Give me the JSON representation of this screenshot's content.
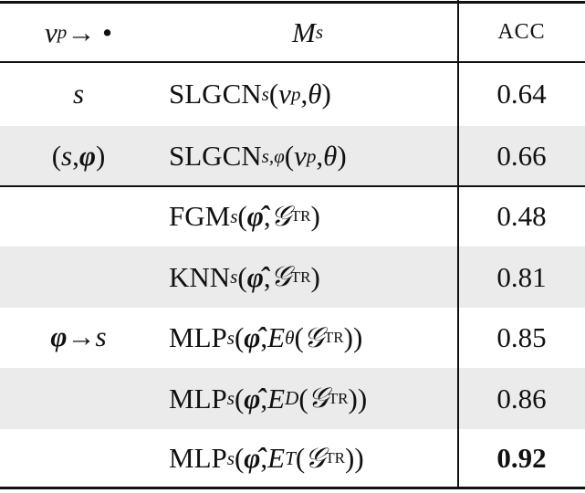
{
  "table": {
    "header": [
      [
        {
          "i": "v"
        },
        {
          "sub": "p"
        },
        " → •"
      ],
      [
        {
          "i": "M"
        },
        {
          "sub": "s"
        }
      ],
      [
        "ACC"
      ]
    ],
    "rows": [
      {
        "setting": [
          {
            "i": "s"
          }
        ],
        "model": [
          "SLGCN",
          {
            "sub": "s"
          },
          "(",
          {
            "i": "v"
          },
          {
            "sub": "p"
          },
          ", ",
          {
            "i": "θ"
          },
          ")"
        ],
        "acc": "0.64"
      },
      {
        "setting": [
          "(",
          {
            "i": "s"
          },
          ", ",
          {
            "bi": "φ"
          },
          ")"
        ],
        "model": [
          "SLGCN",
          {
            "sub": "s,φ"
          },
          "(",
          {
            "i": "v"
          },
          {
            "sub": "p"
          },
          ", ",
          {
            "i": "θ"
          },
          ")"
        ],
        "acc": "0.66"
      },
      {
        "model": [
          "FGM",
          {
            "sub": "s"
          },
          "(",
          {
            "bi": "φ̂"
          },
          ", ",
          {
            "i": "𝒢"
          },
          {
            "sup": "TR"
          },
          ")"
        ],
        "acc": "0.48"
      },
      {
        "model": [
          "KNN",
          {
            "sub": "s"
          },
          "(",
          {
            "bi": "φ̂"
          },
          ", ",
          {
            "i": "𝒢"
          },
          {
            "sup": "TR"
          },
          ")"
        ],
        "acc": "0.81"
      },
      {
        "model": [
          "MLP",
          {
            "sub": "s"
          },
          "(",
          {
            "bi": "φ̂"
          },
          ", ",
          {
            "i": "E"
          },
          {
            "sub": "θ"
          },
          "(",
          {
            "i": "𝒢"
          },
          {
            "sup": "TR"
          },
          "))"
        ],
        "acc": "0.85"
      },
      {
        "model": [
          "MLP",
          {
            "sub": "s"
          },
          "(",
          {
            "bi": "φ̂"
          },
          ", ",
          {
            "i": "E"
          },
          {
            "sub": "D"
          },
          "(",
          {
            "i": "𝒢"
          },
          {
            "sup": "TR"
          },
          "))"
        ],
        "acc": "0.86"
      },
      {
        "model": [
          "MLP",
          {
            "sub": "s"
          },
          "(",
          {
            "bi": "φ̂"
          },
          ", ",
          {
            "i": "E"
          },
          {
            "sub": "T"
          },
          "(",
          {
            "i": "𝒢"
          },
          {
            "sup": "TR"
          },
          "))"
        ],
        "acc": "0.92"
      }
    ],
    "group": [
      {
        "bi": "φ"
      },
      " → ",
      {
        "i": "s"
      }
    ]
  }
}
